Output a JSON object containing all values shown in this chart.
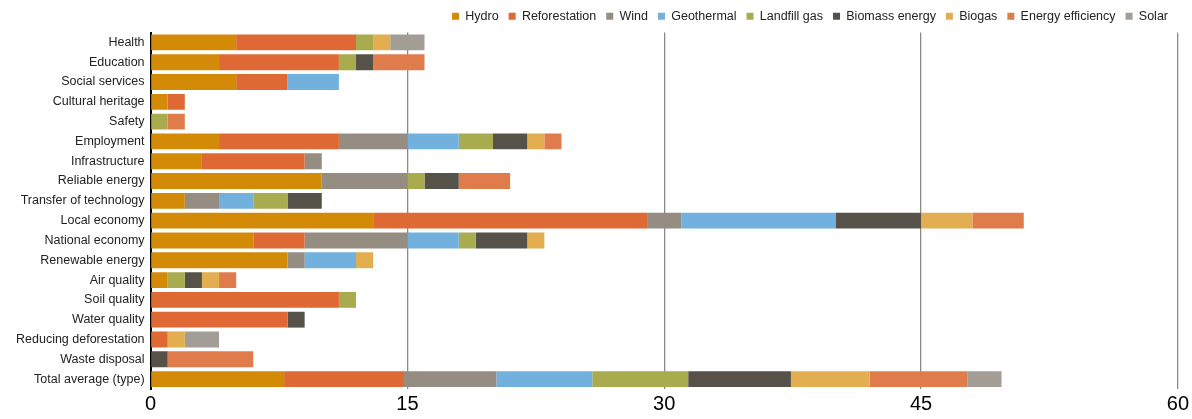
{
  "chart_data": {
    "type": "bar",
    "orientation": "horizontal",
    "stacked": true,
    "legend": "top right",
    "grid": "x",
    "categories": [
      "Health",
      "Education",
      "Social services",
      "Cultural heritage",
      "Safety",
      "Employment",
      "Infrastructure",
      "Reliable energy",
      "Transfer of technology",
      "Local economy",
      "National economy",
      "Renewable energy",
      "Air quality",
      "Soil quality",
      "Water quality",
      "Reducing deforestation",
      "Waste disposal",
      "Total average (type)"
    ],
    "xlim": [
      0,
      60
    ],
    "xticks": [
      0,
      15,
      30,
      45,
      60
    ],
    "series": [
      {
        "name": "Hydro",
        "color": "#d38a07",
        "values": [
          5,
          4,
          5,
          1,
          0,
          4,
          3,
          10,
          2,
          13,
          6,
          8,
          1,
          0,
          0,
          0,
          0,
          7.8
        ]
      },
      {
        "name": "Reforestation",
        "color": "#de6934",
        "values": [
          7,
          7,
          3,
          1,
          0,
          7,
          6,
          0,
          0,
          16,
          3,
          0,
          0,
          11,
          8,
          1,
          0,
          7.0
        ]
      },
      {
        "name": "Wind",
        "color": "#958c82",
        "values": [
          0,
          0,
          0,
          0,
          0,
          4,
          1,
          5,
          2,
          2,
          6,
          1,
          0,
          0,
          0,
          0,
          0,
          5.4
        ]
      },
      {
        "name": "Geothermal",
        "color": "#72b1de",
        "values": [
          0,
          0,
          3,
          0,
          0,
          3,
          0,
          0,
          2,
          9,
          3,
          3,
          0,
          0,
          0,
          0,
          0,
          5.6
        ]
      },
      {
        "name": "Landfill gas",
        "color": "#a8ab4e",
        "values": [
          1,
          1,
          0,
          0,
          1,
          2,
          0,
          1,
          2,
          0,
          1,
          0,
          1,
          1,
          0,
          0,
          0,
          5.6
        ]
      },
      {
        "name": "Biomass energy",
        "color": "#575249",
        "values": [
          0,
          1,
          0,
          0,
          0,
          2,
          0,
          2,
          2,
          5,
          3,
          0,
          1,
          0,
          1,
          0,
          1,
          6.0
        ]
      },
      {
        "name": "Biogas",
        "color": "#e2ae4f",
        "values": [
          1,
          0,
          0,
          0,
          0,
          1,
          0,
          0,
          0,
          3,
          1,
          1,
          1,
          0,
          0,
          1,
          0,
          4.6
        ]
      },
      {
        "name": "Energy efficiency",
        "color": "#e07c4c",
        "values": [
          0,
          3,
          0,
          0,
          1,
          1,
          0,
          3,
          0,
          3,
          0,
          0,
          1,
          0,
          0,
          0,
          5,
          5.7
        ]
      },
      {
        "name": "Solar",
        "color": "#a29d95",
        "values": [
          2,
          0,
          0,
          0,
          0,
          0,
          0,
          0,
          0,
          0,
          0,
          0,
          0,
          0,
          0,
          2,
          0,
          2.0
        ]
      }
    ]
  }
}
